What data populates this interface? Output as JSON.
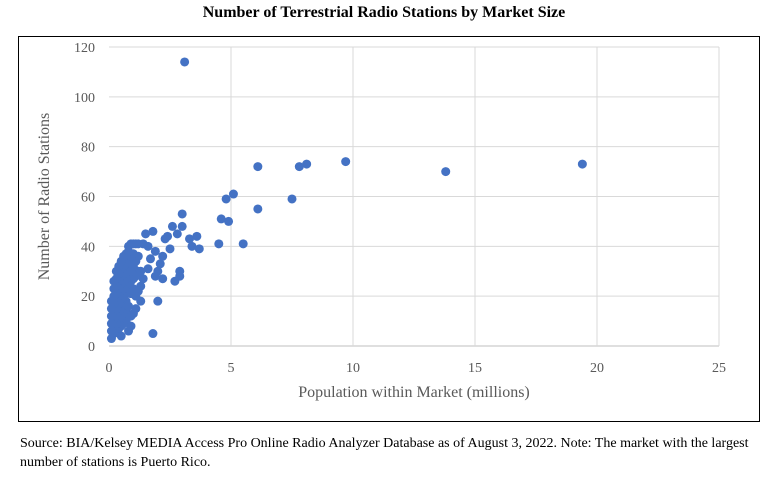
{
  "chart_data": {
    "type": "scatter",
    "title": "Number of Terrestrial Radio Stations by Market Size",
    "xlabel": "Population within Market (millions)",
    "ylabel": "Number of Radio Stations",
    "xlim": [
      0,
      25
    ],
    "ylim": [
      0,
      120
    ],
    "xticks": [
      "0",
      "5",
      "10",
      "15",
      "20",
      "25"
    ],
    "yticks": [
      "0",
      "20",
      "40",
      "60",
      "80",
      "100",
      "120"
    ],
    "grid": true,
    "marker_color": "#4472C4",
    "points": [
      [
        3.1,
        114
      ],
      [
        19.4,
        73
      ],
      [
        13.8,
        70
      ],
      [
        9.7,
        74
      ],
      [
        8.1,
        73
      ],
      [
        7.8,
        72
      ],
      [
        7.5,
        59
      ],
      [
        6.1,
        72
      ],
      [
        6.1,
        55
      ],
      [
        5.1,
        61
      ],
      [
        4.9,
        50
      ],
      [
        4.8,
        59
      ],
      [
        4.6,
        51
      ],
      [
        5.5,
        41
      ],
      [
        4.5,
        41
      ],
      [
        3.7,
        39
      ],
      [
        3.6,
        44
      ],
      [
        3.3,
        43
      ],
      [
        3.4,
        40
      ],
      [
        3.0,
        53
      ],
      [
        3.0,
        48
      ],
      [
        2.8,
        45
      ],
      [
        2.9,
        30
      ],
      [
        2.9,
        28
      ],
      [
        2.6,
        48
      ],
      [
        2.4,
        44
      ],
      [
        2.7,
        26
      ],
      [
        2.5,
        39
      ],
      [
        2.3,
        43
      ],
      [
        2.2,
        36
      ],
      [
        2.0,
        18
      ],
      [
        1.8,
        5
      ],
      [
        1.8,
        46
      ],
      [
        1.5,
        45
      ],
      [
        1.4,
        41
      ],
      [
        2.1,
        33
      ],
      [
        2.0,
        30
      ],
      [
        1.9,
        28
      ],
      [
        1.7,
        35
      ],
      [
        1.6,
        31
      ],
      [
        2.2,
        27
      ],
      [
        1.9,
        38
      ],
      [
        1.6,
        40
      ],
      [
        1.3,
        24
      ],
      [
        1.3,
        18
      ],
      [
        1.2,
        41
      ],
      [
        1.1,
        41
      ],
      [
        1.0,
        41
      ],
      [
        0.9,
        41
      ],
      [
        0.8,
        40
      ],
      [
        1.2,
        36
      ],
      [
        1.1,
        34
      ],
      [
        1.0,
        37
      ],
      [
        0.9,
        35
      ],
      [
        0.8,
        33
      ],
      [
        1.2,
        30
      ],
      [
        1.1,
        28
      ],
      [
        1.0,
        27
      ],
      [
        0.9,
        26
      ],
      [
        0.8,
        29
      ],
      [
        1.3,
        30
      ],
      [
        1.4,
        27
      ],
      [
        1.2,
        22
      ],
      [
        1.1,
        20
      ],
      [
        1.0,
        23
      ],
      [
        0.9,
        21
      ],
      [
        0.8,
        24
      ],
      [
        0.7,
        37
      ],
      [
        0.7,
        33
      ],
      [
        0.7,
        30
      ],
      [
        0.7,
        27
      ],
      [
        0.7,
        22
      ],
      [
        0.7,
        18
      ],
      [
        0.7,
        14
      ],
      [
        0.7,
        10
      ],
      [
        0.6,
        36
      ],
      [
        0.6,
        32
      ],
      [
        0.6,
        29
      ],
      [
        0.6,
        26
      ],
      [
        0.6,
        23
      ],
      [
        0.6,
        20
      ],
      [
        0.6,
        17
      ],
      [
        0.6,
        13
      ],
      [
        0.6,
        9
      ],
      [
        0.5,
        34
      ],
      [
        0.5,
        31
      ],
      [
        0.5,
        28
      ],
      [
        0.5,
        25
      ],
      [
        0.5,
        22
      ],
      [
        0.5,
        19
      ],
      [
        0.5,
        16
      ],
      [
        0.5,
        12
      ],
      [
        0.5,
        8
      ],
      [
        0.4,
        32
      ],
      [
        0.4,
        29
      ],
      [
        0.4,
        26
      ],
      [
        0.4,
        23
      ],
      [
        0.4,
        20
      ],
      [
        0.4,
        17
      ],
      [
        0.4,
        14
      ],
      [
        0.4,
        11
      ],
      [
        0.4,
        7
      ],
      [
        0.3,
        30
      ],
      [
        0.3,
        27
      ],
      [
        0.3,
        24
      ],
      [
        0.3,
        21
      ],
      [
        0.3,
        18
      ],
      [
        0.3,
        15
      ],
      [
        0.3,
        12
      ],
      [
        0.3,
        9
      ],
      [
        0.3,
        6
      ],
      [
        0.2,
        26
      ],
      [
        0.2,
        23
      ],
      [
        0.2,
        20
      ],
      [
        0.2,
        17
      ],
      [
        0.2,
        14
      ],
      [
        0.2,
        11
      ],
      [
        0.2,
        8
      ],
      [
        0.2,
        5
      ],
      [
        0.1,
        18
      ],
      [
        0.1,
        15
      ],
      [
        0.1,
        12
      ],
      [
        0.1,
        9
      ],
      [
        0.1,
        6
      ],
      [
        0.1,
        3
      ],
      [
        0.9,
        8
      ],
      [
        1.0,
        13
      ],
      [
        0.8,
        16
      ],
      [
        1.1,
        15
      ],
      [
        0.9,
        12
      ],
      [
        0.8,
        6
      ],
      [
        0.5,
        4
      ],
      [
        0.9,
        30
      ],
      [
        1.0,
        32
      ],
      [
        0.8,
        38
      ]
    ]
  },
  "caption": "Source: BIA/Kelsey MEDIA Access Pro Online Radio Analyzer Database as of August 3, 2022.  Note: The market with the largest number of stations is Puerto Rico."
}
